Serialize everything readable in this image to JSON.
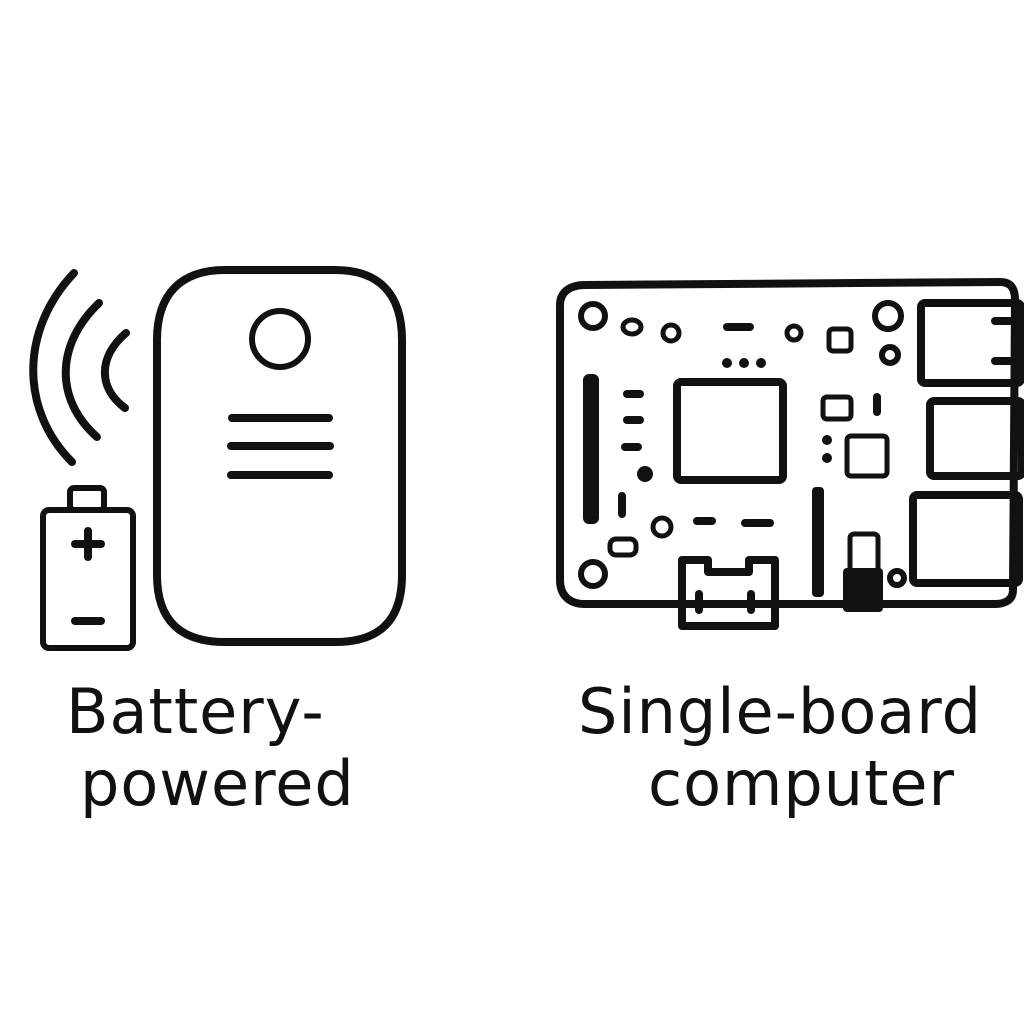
{
  "panels": [
    {
      "id": "battery-powered",
      "icons": [
        "wireless-signal-icon",
        "battery-icon",
        "sensor-device-icon"
      ],
      "label_lines": [
        "Battery-",
        "powered"
      ]
    },
    {
      "id": "single-board-computer",
      "icons": [
        "circuit-board-icon"
      ],
      "label_lines": [
        "Single-board",
        "computer"
      ]
    }
  ],
  "colors": {
    "ink": "#111111",
    "background": "#ffffff"
  }
}
